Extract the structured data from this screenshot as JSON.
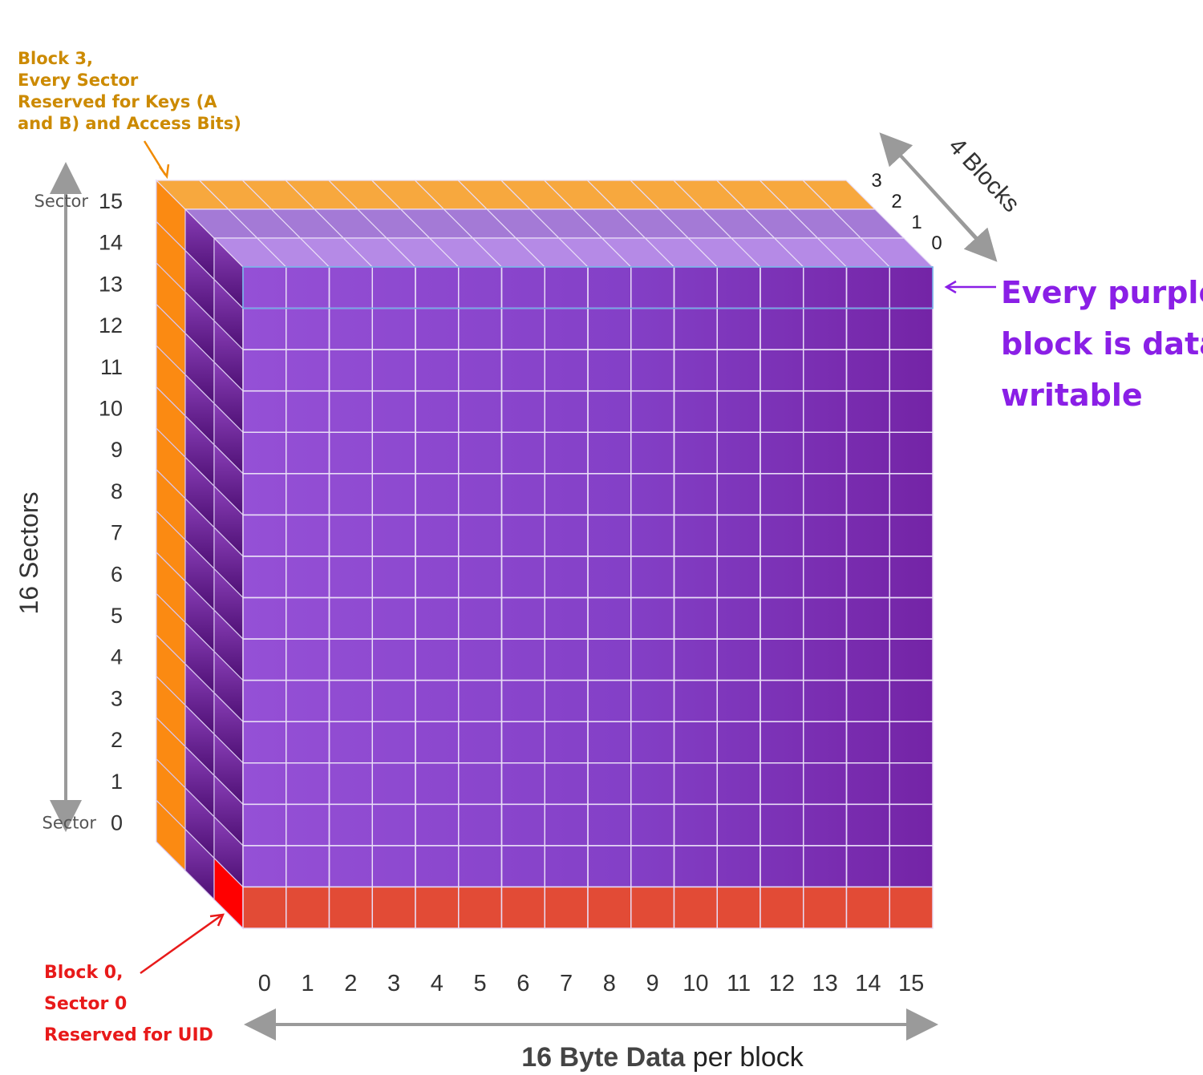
{
  "annotations": {
    "block3_lines": [
      "Block 3,",
      "Every Sector",
      "Reserved for Keys (A",
      "and B) and  Access Bits)"
    ],
    "block0_lines": [
      "Block 0,",
      "Sector 0",
      "Reserved for UID"
    ],
    "purple_lines": [
      "Every purple",
      "block is data",
      "writable"
    ]
  },
  "axes": {
    "sectors_title": "16 Sectors",
    "sector_prefix": "Sector",
    "sector_labels": [
      "15",
      "14",
      "13",
      "12",
      "11",
      "10",
      "9",
      "8",
      "7",
      "6",
      "5",
      "4",
      "3",
      "2",
      "1",
      "0"
    ],
    "blocks_title": "4 Blocks",
    "block_labels": [
      "3",
      "2",
      "1",
      "0"
    ],
    "byte_labels": [
      "0",
      "1",
      "2",
      "3",
      "4",
      "5",
      "6",
      "7",
      "8",
      "9",
      "10",
      "11",
      "12",
      "13",
      "14",
      "15"
    ],
    "bytes_title_bold": "16 Byte Data",
    "bytes_title_rest": " per block"
  },
  "colors": {
    "orange": "#f7a83e",
    "orange_side": "#fb8a12",
    "purple": "#8a47cf",
    "purple_dark": "#6e23a3",
    "red": "#e24b36",
    "red_corner": "#ff0000",
    "block3_text": "#cc8a00",
    "block0_text": "#e81a1a",
    "purple_text": "#8a1fe6",
    "axis_gray": "#9a9a9a"
  }
}
